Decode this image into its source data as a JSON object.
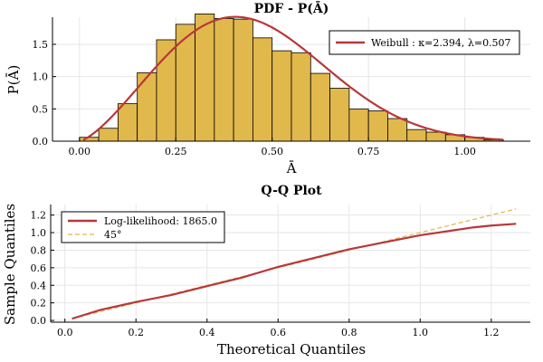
{
  "chart_data": [
    {
      "type": "bar",
      "title": "PDF - P(Ā)",
      "xlabel": "Ā",
      "ylabel": "P(Ā)",
      "xlim": [
        -0.07,
        1.17
      ],
      "ylim": [
        0,
        1.92
      ],
      "xticks": [
        "0.00",
        "0.25",
        "0.50",
        "0.75",
        "1.00"
      ],
      "xtick_values": [
        0,
        0.25,
        0.5,
        0.75,
        1.0
      ],
      "yticks": [
        "0.0",
        "0.5",
        "1.0",
        "1.5"
      ],
      "ytick_values": [
        0,
        0.5,
        1.0,
        1.5
      ],
      "grid": true,
      "legend_position": "top-right",
      "histogram": {
        "bin_width": 0.05,
        "bin_starts": [
          0.0,
          0.05,
          0.1,
          0.15,
          0.2,
          0.25,
          0.3,
          0.35,
          0.4,
          0.45,
          0.5,
          0.55,
          0.6,
          0.65,
          0.7,
          0.75,
          0.8,
          0.85,
          0.9,
          0.95,
          1.0,
          1.05
        ],
        "values": [
          0.06,
          0.2,
          0.58,
          1.06,
          1.57,
          1.81,
          1.97,
          1.9,
          1.89,
          1.6,
          1.4,
          1.37,
          1.05,
          0.82,
          0.5,
          0.47,
          0.35,
          0.18,
          0.14,
          0.1,
          0.06,
          0.02
        ],
        "color": "#e1b84c"
      },
      "series": [
        {
          "name": "Weibull : κ=2.394, λ=0.507",
          "kind": "line",
          "color": "#b8373a",
          "distribution": "weibull",
          "shape": 2.394,
          "scale": 0.507,
          "x_range": [
            0.01,
            1.1
          ]
        }
      ]
    },
    {
      "type": "line",
      "title": "Q-Q Plot",
      "xlabel": "Theoretical Quantiles",
      "ylabel": "Sample Quantiles",
      "xlim": [
        -0.04,
        1.31
      ],
      "ylim": [
        -0.02,
        1.32
      ],
      "xticks": [
        "0.0",
        "0.2",
        "0.4",
        "0.6",
        "0.8",
        "1.0",
        "1.2"
      ],
      "xtick_values": [
        0,
        0.2,
        0.4,
        0.6,
        0.8,
        1.0,
        1.2
      ],
      "yticks": [
        "0.0",
        "0.2",
        "0.4",
        "0.6",
        "0.8",
        "1.0",
        "1.2"
      ],
      "ytick_values": [
        0,
        0.2,
        0.4,
        0.6,
        0.8,
        1.0,
        1.2
      ],
      "grid": true,
      "legend_position": "top-left",
      "series": [
        {
          "name": "Log-likelihood: 1865.0",
          "kind": "line",
          "color": "#b8373a",
          "x": [
            0.02,
            0.1,
            0.2,
            0.3,
            0.4,
            0.5,
            0.6,
            0.7,
            0.8,
            0.85,
            0.9,
            0.95,
            1.0,
            1.05,
            1.1,
            1.15,
            1.2,
            1.27
          ],
          "y": [
            0.02,
            0.12,
            0.21,
            0.29,
            0.39,
            0.49,
            0.61,
            0.71,
            0.81,
            0.85,
            0.89,
            0.93,
            0.97,
            1.0,
            1.03,
            1.06,
            1.08,
            1.1
          ]
        },
        {
          "name": "45°",
          "kind": "dashed",
          "color": "#e1b84c",
          "x": [
            0.02,
            1.27
          ],
          "y": [
            0.02,
            1.27
          ]
        }
      ]
    }
  ]
}
